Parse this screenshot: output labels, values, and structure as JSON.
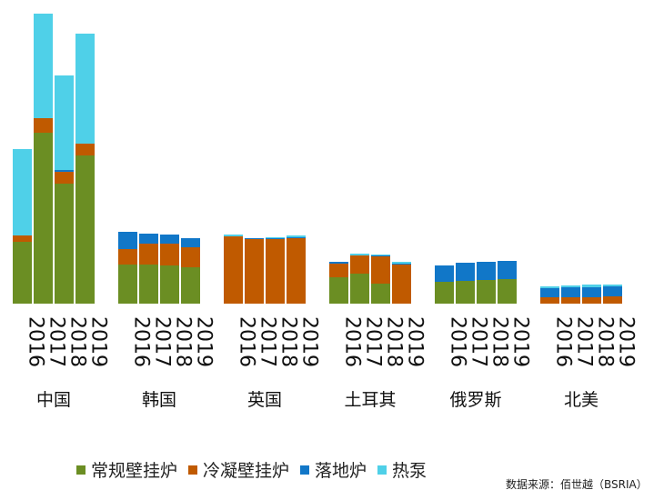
{
  "chart_data": {
    "type": "bar",
    "stacked": true,
    "groups": [
      "中国",
      "韩国",
      "英国",
      "土耳其",
      "俄罗斯",
      "北美"
    ],
    "years": [
      "2016",
      "2017",
      "2018",
      "2019"
    ],
    "series": [
      {
        "name": "常规壁挂炉",
        "color": "#6b8e23",
        "values": [
          [
            68,
            188,
            132,
            163
          ],
          [
            43,
            43,
            42,
            40
          ],
          [
            0,
            0,
            0,
            0
          ],
          [
            29,
            33,
            22,
            0
          ],
          [
            24,
            25,
            26,
            27
          ],
          [
            0,
            0,
            0,
            0
          ]
        ]
      },
      {
        "name": "冷凝壁挂炉",
        "color": "#c05a00",
        "values": [
          [
            7,
            16,
            13,
            13
          ],
          [
            17,
            23,
            24,
            22
          ],
          [
            74,
            71,
            71,
            72
          ],
          [
            15,
            20,
            30,
            43
          ],
          [
            0,
            0,
            0,
            0
          ],
          [
            7,
            7,
            7,
            8
          ]
        ]
      },
      {
        "name": "落地炉",
        "color": "#1177c8",
        "values": [
          [
            0,
            0,
            2,
            0
          ],
          [
            19,
            11,
            10,
            10
          ],
          [
            0,
            1,
            1,
            1
          ],
          [
            2,
            0,
            1,
            1
          ],
          [
            18,
            20,
            20,
            20
          ],
          [
            10,
            11,
            11,
            11
          ]
        ]
      },
      {
        "name": "热泵",
        "color": "#4fd0e8",
        "values": [
          [
            95,
            115,
            104,
            121
          ],
          [
            0,
            0,
            0,
            0
          ],
          [
            2,
            0,
            1,
            2
          ],
          [
            0,
            2,
            1,
            2
          ],
          [
            0,
            0,
            0,
            0
          ],
          [
            2,
            2,
            3,
            2
          ]
        ]
      }
    ],
    "ylim": [
      0,
      320
    ],
    "grid": false,
    "legend_position": "bottom"
  },
  "legend": {
    "items": [
      {
        "label": "常规壁挂炉",
        "color": "#6b8e23"
      },
      {
        "label": "冷凝壁挂炉",
        "color": "#c05a00"
      },
      {
        "label": "落地炉",
        "color": "#1177c8"
      },
      {
        "label": "热泵",
        "color": "#4fd0e8"
      }
    ]
  },
  "source": "数据来源：佰世越（BSRIA）"
}
